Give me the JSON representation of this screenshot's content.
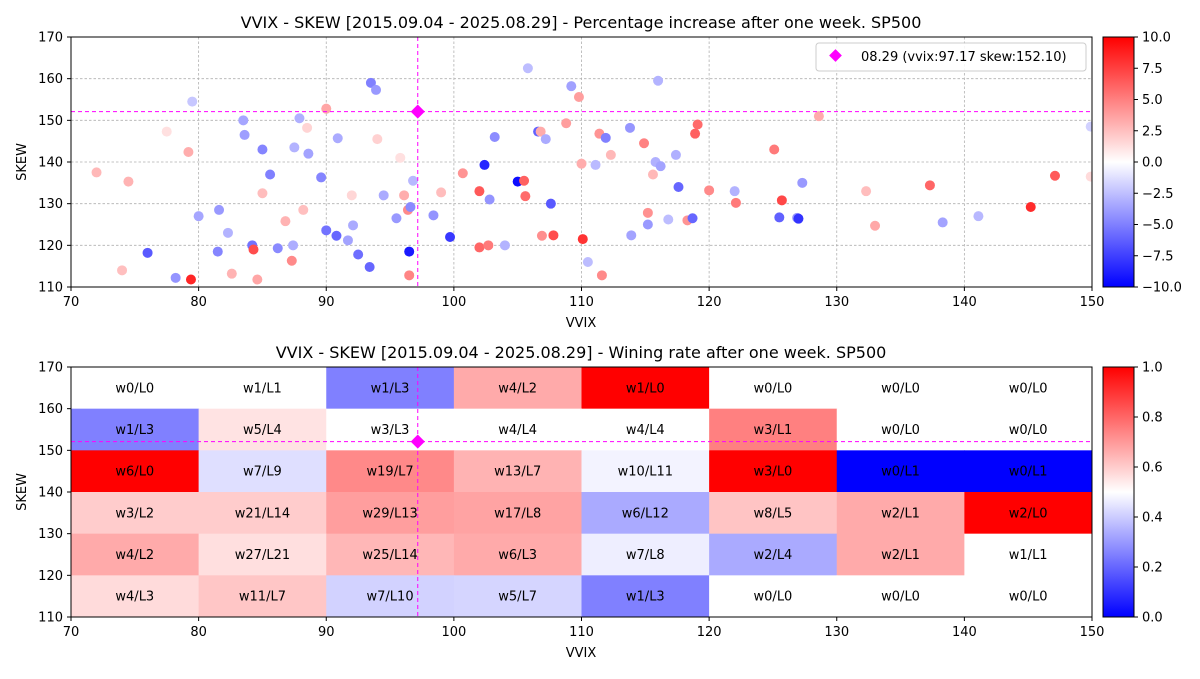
{
  "chart_data": [
    {
      "type": "scatter",
      "title": "VVIX - SKEW [2015.09.04 - 2025.08.29]  - Percentage increase after one week. SP500",
      "xlabel": "VVIX",
      "ylabel": "SKEW",
      "xlim": [
        70,
        150
      ],
      "ylim": [
        110,
        170
      ],
      "xticks": [
        "70",
        "80",
        "90",
        "100",
        "110",
        "120",
        "130",
        "140",
        "150"
      ],
      "yticks": [
        "110",
        "120",
        "130",
        "140",
        "150",
        "160",
        "170"
      ],
      "grid": true,
      "legend": {
        "placement": "top-right",
        "label": "08.29 (vvix:97.17 skew:152.10)"
      },
      "current_point": {
        "x": 97.17,
        "y": 152.1,
        "color": "#ff00ff"
      },
      "colorbar": {
        "min": -10,
        "max": 10,
        "colormap": "bwr",
        "ticks": [
          "10.0",
          "7.5",
          "5.0",
          "2.5",
          "0.0",
          "−2.5",
          "−5.0",
          "−7.5",
          "−10.0"
        ]
      },
      "points": [
        [
          76.0,
          118.2,
          -6.5
        ],
        [
          79.4,
          111.8,
          8.5
        ],
        [
          78.2,
          112.2,
          -4.2
        ],
        [
          74.0,
          114.0,
          2.5
        ],
        [
          72.0,
          137.5,
          2.8
        ],
        [
          74.5,
          135.3,
          3.0
        ],
        [
          77.5,
          147.3,
          1.2
        ],
        [
          79.2,
          142.4,
          3.2
        ],
        [
          79.5,
          154.5,
          -2.2
        ],
        [
          80.0,
          127.0,
          -3.5
        ],
        [
          81.6,
          128.5,
          -4.0
        ],
        [
          81.5,
          118.5,
          -4.8
        ],
        [
          82.3,
          123.0,
          -3.0
        ],
        [
          82.6,
          113.2,
          3.0
        ],
        [
          83.5,
          150.0,
          -3.5
        ],
        [
          83.6,
          146.5,
          -3.8
        ],
        [
          84.2,
          120.0,
          -5.5
        ],
        [
          84.3,
          119.0,
          7.0
        ],
        [
          85.0,
          143.0,
          -4.8
        ],
        [
          85.0,
          132.5,
          2.6
        ],
        [
          84.6,
          111.8,
          3.5
        ],
        [
          85.6,
          137.0,
          -5.0
        ],
        [
          86.2,
          119.3,
          -4.6
        ],
        [
          86.8,
          125.8,
          3.0
        ],
        [
          87.3,
          116.3,
          4.6
        ],
        [
          87.4,
          120.0,
          -3.2
        ],
        [
          87.5,
          143.5,
          -3.0
        ],
        [
          87.9,
          150.5,
          -3.1
        ],
        [
          88.2,
          128.5,
          2.5
        ],
        [
          88.6,
          142.0,
          -3.6
        ],
        [
          89.6,
          136.3,
          -4.8
        ],
        [
          90.0,
          152.8,
          3.5
        ],
        [
          90.0,
          123.6,
          -5.5
        ],
        [
          90.8,
          122.3,
          -6.0
        ],
        [
          90.9,
          145.7,
          -3.3
        ],
        [
          91.7,
          121.2,
          -3.6
        ],
        [
          92.1,
          124.8,
          -3.3
        ],
        [
          92.5,
          117.8,
          -5.7
        ],
        [
          93.4,
          114.8,
          -6.0
        ],
        [
          93.5,
          159.0,
          -5.0
        ],
        [
          93.9,
          157.3,
          -4.0
        ],
        [
          94.5,
          132.0,
          -3.3
        ],
        [
          95.5,
          126.5,
          -4.0
        ],
        [
          95.8,
          141.0,
          1.2
        ],
        [
          96.1,
          132.0,
          3.2
        ],
        [
          96.4,
          128.5,
          4.6
        ],
        [
          96.5,
          118.5,
          -9.0
        ],
        [
          96.5,
          112.8,
          4.8
        ],
        [
          96.6,
          129.2,
          -4.6
        ],
        [
          96.8,
          135.5,
          -2.8
        ],
        [
          98.4,
          127.2,
          -4.2
        ],
        [
          99.0,
          132.7,
          2.6
        ],
        [
          99.7,
          122.0,
          -7.8
        ],
        [
          100.7,
          137.3,
          4.2
        ],
        [
          102.0,
          119.5,
          6.0
        ],
        [
          102.0,
          133.0,
          6.5
        ],
        [
          102.4,
          139.3,
          -8.5
        ],
        [
          102.7,
          120.0,
          5.2
        ],
        [
          102.8,
          131.0,
          -4.2
        ],
        [
          103.2,
          146.0,
          -4.5
        ],
        [
          104.0,
          120.0,
          -3.0
        ],
        [
          105.0,
          135.3,
          -9.5
        ],
        [
          105.5,
          135.5,
          6.2
        ],
        [
          105.6,
          131.8,
          5.8
        ],
        [
          105.8,
          162.5,
          -2.6
        ],
        [
          106.6,
          147.3,
          -6.2
        ],
        [
          106.8,
          147.3,
          3.3
        ],
        [
          106.9,
          122.3,
          4.4
        ],
        [
          107.2,
          145.5,
          -3.3
        ],
        [
          107.6,
          130.0,
          -6.5
        ],
        [
          107.8,
          122.4,
          7.0
        ],
        [
          108.8,
          149.3,
          3.8
        ],
        [
          109.2,
          158.2,
          -3.7
        ],
        [
          109.8,
          155.6,
          3.8
        ],
        [
          110.0,
          139.6,
          3.2
        ],
        [
          110.1,
          121.5,
          8.0
        ],
        [
          110.5,
          116.0,
          -2.6
        ],
        [
          111.1,
          139.3,
          -2.7
        ],
        [
          111.4,
          146.8,
          4.2
        ],
        [
          111.6,
          112.8,
          4.6
        ],
        [
          111.9,
          145.8,
          -5.0
        ],
        [
          112.3,
          141.7,
          2.8
        ],
        [
          113.8,
          148.2,
          -4.1
        ],
        [
          113.9,
          122.4,
          -3.6
        ],
        [
          114.9,
          144.5,
          4.9
        ],
        [
          115.2,
          127.8,
          4.3
        ],
        [
          115.2,
          125.0,
          -4.0
        ],
        [
          115.6,
          137.0,
          2.8
        ],
        [
          115.8,
          140.0,
          -3.1
        ],
        [
          116.0,
          159.5,
          -3.0
        ],
        [
          116.2,
          139.0,
          -3.6
        ],
        [
          116.8,
          126.2,
          -2.6
        ],
        [
          117.4,
          141.7,
          -3.1
        ],
        [
          117.6,
          134.0,
          -6.0
        ],
        [
          118.3,
          126.0,
          4.2
        ],
        [
          118.7,
          126.5,
          -6.0
        ],
        [
          118.9,
          146.8,
          6.2
        ],
        [
          119.1,
          149.0,
          5.8
        ],
        [
          120.0,
          133.2,
          4.6
        ],
        [
          122.0,
          133.0,
          -3.0
        ],
        [
          122.1,
          130.2,
          5.2
        ],
        [
          125.1,
          143.0,
          5.2
        ],
        [
          125.5,
          126.7,
          -6.2
        ],
        [
          125.7,
          130.8,
          7.2
        ],
        [
          126.9,
          126.6,
          -4.2
        ],
        [
          127.0,
          126.4,
          -8.0
        ],
        [
          127.3,
          135.0,
          -4.0
        ],
        [
          128.6,
          151.0,
          3.3
        ],
        [
          132.3,
          133.0,
          2.6
        ],
        [
          133.0,
          124.7,
          3.4
        ],
        [
          137.3,
          134.4,
          6.0
        ],
        [
          138.3,
          125.5,
          -3.6
        ],
        [
          141.1,
          127.0,
          -2.8
        ],
        [
          145.2,
          129.2,
          8.3
        ],
        [
          147.1,
          136.7,
          6.5
        ],
        [
          149.9,
          148.5,
          -1.8
        ],
        [
          149.9,
          136.5,
          1.4
        ],
        [
          94.0,
          145.5,
          1.8
        ],
        [
          92.0,
          132.0,
          1.6
        ],
        [
          88.5,
          148.2,
          1.7
        ]
      ]
    },
    {
      "type": "heatmap",
      "title": "VVIX - SKEW [2015.09.04 - 2025.08.29]  - Wining rate after one week. SP500",
      "xlabel": "VVIX",
      "ylabel": "SKEW",
      "xlim": [
        70,
        150
      ],
      "ylim": [
        110,
        170
      ],
      "xticks": [
        "70",
        "80",
        "90",
        "100",
        "110",
        "120",
        "130",
        "140",
        "150"
      ],
      "yticks": [
        "110",
        "120",
        "130",
        "140",
        "150",
        "160",
        "170"
      ],
      "x_bins": [
        70,
        80,
        90,
        100,
        110,
        120,
        130,
        140,
        150
      ],
      "y_bins": [
        110,
        120,
        130,
        140,
        150,
        160,
        170
      ],
      "current_point": {
        "x": 97.17,
        "y": 152.1,
        "color": "#ff00ff"
      },
      "colorbar": {
        "min": 0,
        "max": 1,
        "colormap": "bwr",
        "ticks": [
          "1.0",
          "0.8",
          "0.6",
          "0.4",
          "0.2",
          "0.0"
        ]
      },
      "rows": [
        {
          "skew_range": [
            160,
            170
          ],
          "cells": [
            {
              "label": "w0/L0",
              "rate": 0.5
            },
            {
              "label": "w1/L1",
              "rate": 0.5
            },
            {
              "label": "w1/L3",
              "rate": 0.25
            },
            {
              "label": "w4/L2",
              "rate": 0.6667
            },
            {
              "label": "w1/L0",
              "rate": 1.0
            },
            {
              "label": "w0/L0",
              "rate": 0.5
            },
            {
              "label": "w0/L0",
              "rate": 0.5
            },
            {
              "label": "w0/L0",
              "rate": 0.5
            }
          ]
        },
        {
          "skew_range": [
            150,
            160
          ],
          "cells": [
            {
              "label": "w1/L3",
              "rate": 0.25
            },
            {
              "label": "w5/L4",
              "rate": 0.5556
            },
            {
              "label": "w3/L3",
              "rate": 0.5
            },
            {
              "label": "w4/L4",
              "rate": 0.5
            },
            {
              "label": "w4/L4",
              "rate": 0.5
            },
            {
              "label": "w3/L1",
              "rate": 0.75
            },
            {
              "label": "w0/L0",
              "rate": 0.5
            },
            {
              "label": "w0/L0",
              "rate": 0.5
            }
          ]
        },
        {
          "skew_range": [
            140,
            150
          ],
          "cells": [
            {
              "label": "w6/L0",
              "rate": 1.0
            },
            {
              "label": "w7/L9",
              "rate": 0.4375
            },
            {
              "label": "w19/L7",
              "rate": 0.7308
            },
            {
              "label": "w13/L7",
              "rate": 0.65
            },
            {
              "label": "w10/L11",
              "rate": 0.4762
            },
            {
              "label": "w3/L0",
              "rate": 1.0
            },
            {
              "label": "w0/L1",
              "rate": 0.0
            },
            {
              "label": "w0/L1",
              "rate": 0.0
            }
          ]
        },
        {
          "skew_range": [
            130,
            140
          ],
          "cells": [
            {
              "label": "w3/L2",
              "rate": 0.6
            },
            {
              "label": "w21/L14",
              "rate": 0.6
            },
            {
              "label": "w29/L13",
              "rate": 0.6905
            },
            {
              "label": "w17/L8",
              "rate": 0.68
            },
            {
              "label": "w6/L12",
              "rate": 0.3333
            },
            {
              "label": "w8/L5",
              "rate": 0.6154
            },
            {
              "label": "w2/L1",
              "rate": 0.6667
            },
            {
              "label": "w2/L0",
              "rate": 1.0
            }
          ]
        },
        {
          "skew_range": [
            120,
            130
          ],
          "cells": [
            {
              "label": "w4/L2",
              "rate": 0.6667
            },
            {
              "label": "w27/L21",
              "rate": 0.5625
            },
            {
              "label": "w25/L14",
              "rate": 0.641
            },
            {
              "label": "w6/L3",
              "rate": 0.6667
            },
            {
              "label": "w7/L8",
              "rate": 0.4667
            },
            {
              "label": "w2/L4",
              "rate": 0.3333
            },
            {
              "label": "w2/L1",
              "rate": 0.6667
            },
            {
              "label": "w1/L1",
              "rate": 0.5
            }
          ]
        },
        {
          "skew_range": [
            110,
            120
          ],
          "cells": [
            {
              "label": "w4/L3",
              "rate": 0.5714
            },
            {
              "label": "w11/L7",
              "rate": 0.6111
            },
            {
              "label": "w7/L10",
              "rate": 0.4118
            },
            {
              "label": "w5/L7",
              "rate": 0.4167
            },
            {
              "label": "w1/L3",
              "rate": 0.25
            },
            {
              "label": "w0/L0",
              "rate": 0.5
            },
            {
              "label": "w0/L0",
              "rate": 0.5
            },
            {
              "label": "w0/L0",
              "rate": 0.5
            }
          ]
        }
      ]
    }
  ]
}
